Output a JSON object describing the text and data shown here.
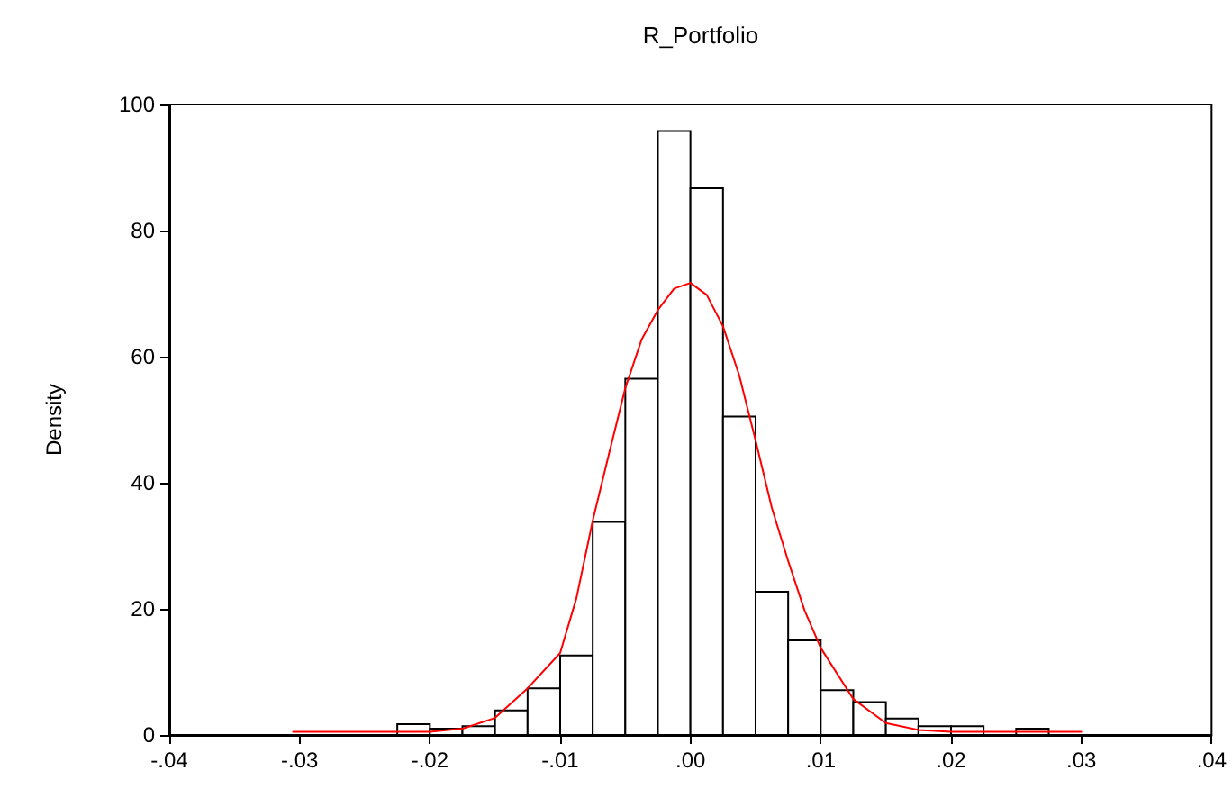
{
  "chart_data": {
    "type": "histogram",
    "title": "R_Portfolio",
    "ylabel": "Density",
    "bins": [
      -0.0225,
      -0.02,
      -0.0175,
      -0.015,
      -0.0125,
      -0.01,
      -0.0075,
      -0.005,
      -0.0025,
      0,
      0.0025,
      0.005,
      0.0075,
      0.01,
      0.0125,
      0.015,
      0.0175,
      0.02,
      0.0225,
      0.025,
      0.0275
    ],
    "series": [
      {
        "color": "#ffffff",
        "values": [
          1.7,
          1.0,
          1.4,
          3.9,
          7.4,
          12.6,
          33.8,
          56.5,
          95.8,
          86.7,
          50.5,
          22.7,
          15.0,
          7.1,
          5.2,
          2.6,
          1.4,
          1.4,
          0,
          1.0
        ]
      },
      {
        "type": "line",
        "color": "#ff0000",
        "x": [
          -0.0305,
          -0.025,
          -0.02,
          -0.0175,
          -0.015,
          -0.0125,
          -0.01,
          -0.00875,
          -0.0075,
          -0.00625,
          -0.005,
          -0.00375,
          -0.0025,
          -0.00125,
          0,
          0.00125,
          0.0025,
          0.00375,
          0.005,
          0.00625,
          0.0075,
          0.00875,
          0.01,
          0.0125,
          0.015,
          0.0175,
          0.02,
          0.025,
          0.03
        ],
        "values": [
          0.5,
          0.5,
          0.5,
          1.0,
          2.7,
          7.4,
          13,
          21.7,
          34,
          44.6,
          55,
          62.7,
          67.4,
          70.8,
          71.7,
          69.8,
          64.8,
          57,
          46.7,
          36,
          27.6,
          19.8,
          13.8,
          5.7,
          1.9,
          0.8,
          0.5,
          0.5,
          0.5
        ]
      }
    ],
    "xlim": [
      -0.04,
      0.04
    ],
    "xticks": [
      {
        "value": -0.04,
        "label": "-.04"
      },
      {
        "value": -0.03,
        "label": "-.03"
      },
      {
        "value": -0.02,
        "label": "-.02"
      },
      {
        "value": -0.01,
        "label": "-.01"
      },
      {
        "value": 0,
        "label": ".00"
      },
      {
        "value": 0.01,
        "label": ".01"
      },
      {
        "value": 0.02,
        "label": ".02"
      },
      {
        "value": 0.03,
        "label": ".03"
      },
      {
        "value": 0.04,
        "label": ".04"
      }
    ],
    "ylim": [
      0,
      100
    ],
    "yticks": [
      0,
      20,
      40,
      60,
      80,
      100
    ],
    "grid": false,
    "marker": "none",
    "line_style": "solid"
  }
}
